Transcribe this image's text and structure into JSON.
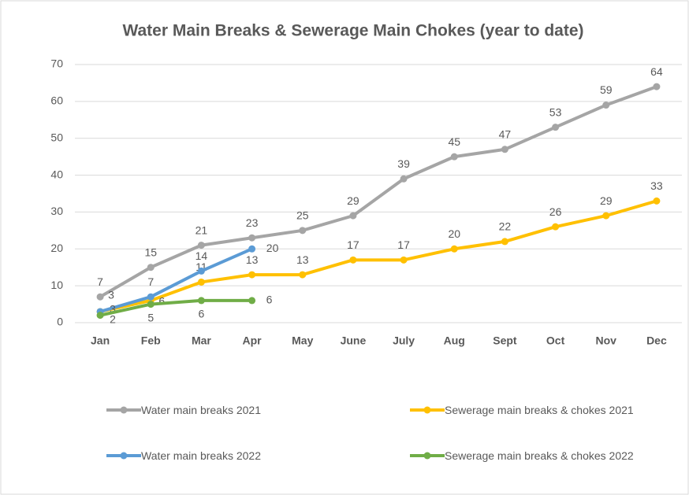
{
  "chart_data": {
    "type": "line",
    "title": "Water Main Breaks & Sewerage Main Chokes (year to date)",
    "categories": [
      "Jan",
      "Feb",
      "Mar",
      "Apr",
      "May",
      "June",
      "July",
      "Aug",
      "Sept",
      "Oct",
      "Nov",
      "Dec"
    ],
    "series": [
      {
        "name": "Water main breaks 2021",
        "color": "#a5a5a5",
        "values": [
          7,
          15,
          21,
          23,
          25,
          29,
          39,
          45,
          47,
          53,
          59,
          64
        ]
      },
      {
        "name": "Sewerage main breaks & chokes 2021",
        "color": "#ffc000",
        "values": [
          3,
          6,
          11,
          13,
          13,
          17,
          17,
          20,
          22,
          26,
          29,
          33
        ]
      },
      {
        "name": "Water main breaks 2022",
        "color": "#5b9bd5",
        "values": [
          3,
          7,
          14,
          20,
          null,
          null,
          null,
          null,
          null,
          null,
          null,
          null
        ]
      },
      {
        "name": "Sewerage main breaks & chokes 2022",
        "color": "#70ad47",
        "values": [
          2,
          5,
          6,
          6,
          null,
          null,
          null,
          null,
          null,
          null,
          null,
          null
        ]
      }
    ],
    "ylim": [
      0,
      70
    ],
    "yticks": [
      0,
      10,
      20,
      30,
      40,
      50,
      60,
      70
    ],
    "grid": true,
    "legend": "bottom"
  }
}
